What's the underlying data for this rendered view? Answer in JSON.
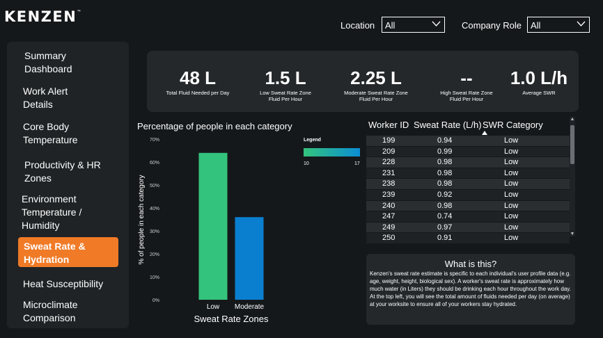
{
  "brand": {
    "logo_text": "KENZEN",
    "tm": "™"
  },
  "filters": {
    "location_label": "Location",
    "location_value": "All",
    "role_label": "Company Role",
    "role_value": "All"
  },
  "sidebar": {
    "items": [
      {
        "line1": "Summary",
        "line2": "Dashboard"
      },
      {
        "line1": "Work Alert",
        "line2": "Details"
      },
      {
        "line1": "Core Body",
        "line2": "Temperature"
      },
      {
        "line1": "Productivity & HR",
        "line2": "Zones"
      },
      {
        "line1": "Environment",
        "line2": "Temperature /",
        "line3": "Humidity"
      },
      {
        "line1": "Sweat Rate &",
        "line2": "Hydration",
        "active": true
      },
      {
        "line1": "Heat Susceptibility"
      },
      {
        "line1": "Microclimate",
        "line2": "Comparison"
      }
    ]
  },
  "kpis": [
    {
      "value": "48 L",
      "label1": "Total Fluid Needed per Day",
      "label2": ""
    },
    {
      "value": "1.5 L",
      "label1": "Low Sweat Rate Zone",
      "label2": "Fluid Per Hour"
    },
    {
      "value": "2.25 L",
      "label1": "Moderate Sweat Rate Zone",
      "label2": "Fluid Per Hour"
    },
    {
      "value": "--",
      "label1": "High Sweat Rate Zone",
      "label2": "Fluid Per Hour"
    },
    {
      "value": "1.0 L/h",
      "label1": "Average SWR",
      "label2": ""
    }
  ],
  "legend": {
    "title": "Legend",
    "min": "10",
    "max": "17"
  },
  "chart_data": {
    "type": "bar",
    "title": "Percentage of people in each category",
    "xlabel": "Sweat Rate Zones",
    "ylabel": "% of people in each category",
    "categories": [
      "Low",
      "Moderate"
    ],
    "values": [
      64,
      36
    ],
    "bar_colors": [
      "#33c37d",
      "#0b7fcf"
    ],
    "ylim": [
      0,
      70
    ],
    "yticks": [
      "0%",
      "10%",
      "20%",
      "30%",
      "40%",
      "50%",
      "60%",
      "70%"
    ],
    "grid": false
  },
  "table": {
    "headers": [
      "Worker ID",
      "Sweat Rate (L/h)",
      "SWR Category"
    ],
    "rows": [
      [
        "199",
        "0.94",
        "Low"
      ],
      [
        "209",
        "0.99",
        "Low"
      ],
      [
        "228",
        "0.98",
        "Low"
      ],
      [
        "231",
        "0.98",
        "Low"
      ],
      [
        "238",
        "0.98",
        "Low"
      ],
      [
        "239",
        "0.92",
        "Low"
      ],
      [
        "240",
        "0.98",
        "Low"
      ],
      [
        "247",
        "0.74",
        "Low"
      ],
      [
        "249",
        "0.97",
        "Low"
      ],
      [
        "250",
        "0.91",
        "Low"
      ]
    ]
  },
  "info": {
    "title": "What is this?",
    "body": "Kenzen's sweat rate estimate is specific to each individual's user profile data (e.g. age, weight, height, biological sex). A worker's sweat rate is approximately how much water (in Liters) they should be drinking each hour throughout the work day. At the top left, you will see the total amount of fluids needed per day (on average) at your worksite to ensure all of your workers stay hydrated."
  },
  "colors": {
    "accent": "#f07a26",
    "background": "#15181b",
    "panel": "#24282b"
  }
}
